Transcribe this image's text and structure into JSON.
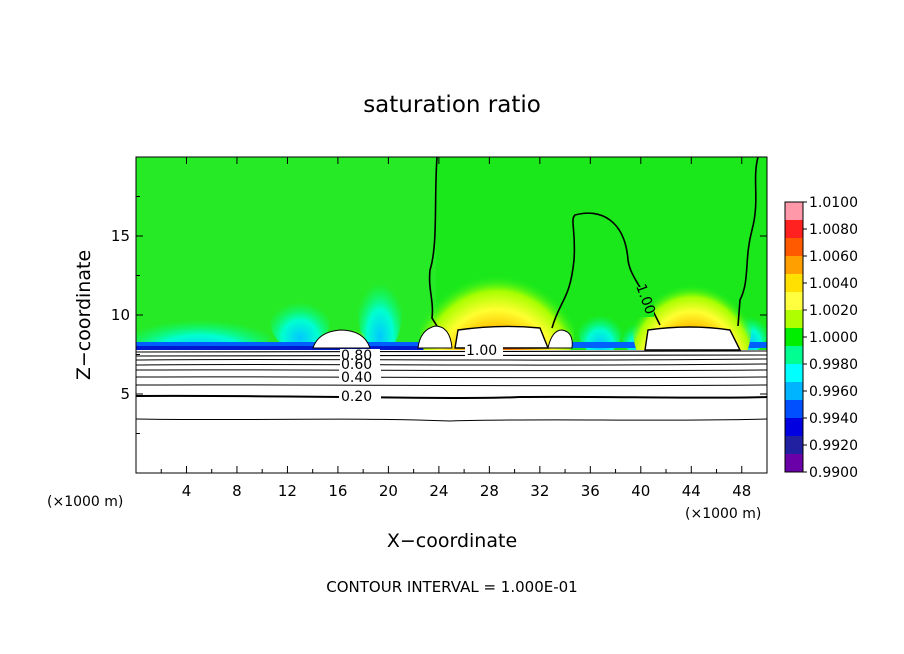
{
  "chart_data": {
    "type": "heatmap",
    "title": "saturation ratio",
    "xlabel": "X−coordinate",
    "ylabel": "Z−coordinate",
    "x_unit": "(×1000 m)",
    "z_unit": "(×1000 m)",
    "footer": "CONTOUR INTERVAL = 1.000E-01",
    "xlim": [
      0,
      50
    ],
    "ylim": [
      0,
      20
    ],
    "x_ticks": [
      "4",
      "8",
      "12",
      "16",
      "20",
      "24",
      "28",
      "32",
      "36",
      "40",
      "44",
      "48"
    ],
    "y_ticks": [
      "5",
      "10",
      "15"
    ],
    "colorbar": {
      "range": [
        0.99,
        1.01
      ],
      "labels": [
        "1.0100",
        "1.0080",
        "1.0060",
        "1.0040",
        "1.0020",
        "1.0000",
        "0.9980",
        "0.9960",
        "0.9940",
        "0.9920",
        "0.9900"
      ],
      "colors": [
        "#ff99aa",
        "#ff2020",
        "#ff5a00",
        "#ffa000",
        "#ffe000",
        "#ffff40",
        "#b0ff00",
        "#00ee00",
        "#00ff90",
        "#00ffff",
        "#00b4ff",
        "#0050ff",
        "#0000e0",
        "#2020a0",
        "#6a00a8"
      ]
    },
    "contour_labels": [
      "1.00",
      "1.00",
      "0.80",
      "0.60",
      "0.40",
      "0.20"
    ]
  }
}
